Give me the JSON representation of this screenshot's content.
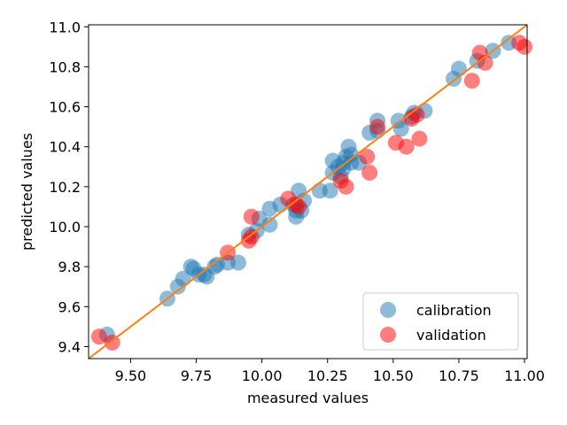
{
  "chart_data": {
    "type": "scatter",
    "title": "",
    "xlabel": "measured values",
    "ylabel": "predicted values",
    "xlim": [
      9.34,
      11.01
    ],
    "ylim": [
      9.34,
      11.01
    ],
    "xticks": [
      9.5,
      9.75,
      10.0,
      10.25,
      10.5,
      10.75,
      11.0
    ],
    "xtick_labels": [
      "9.50",
      "9.75",
      "10.00",
      "10.25",
      "10.50",
      "10.75",
      "11.00"
    ],
    "yticks": [
      9.4,
      9.6,
      9.8,
      10.0,
      10.2,
      10.4,
      10.6,
      10.8,
      11.0
    ],
    "ytick_labels": [
      "9.4",
      "9.6",
      "9.8",
      "10.0",
      "10.2",
      "10.4",
      "10.6",
      "10.8",
      "11.0"
    ],
    "grid": false,
    "legend_position": "bottom-right",
    "series": [
      {
        "name": "calibration",
        "color": "#1f77b4",
        "points": [
          [
            9.41,
            9.46
          ],
          [
            9.64,
            9.64
          ],
          [
            9.68,
            9.7
          ],
          [
            9.7,
            9.74
          ],
          [
            9.73,
            9.8
          ],
          [
            9.74,
            9.79
          ],
          [
            9.76,
            9.76
          ],
          [
            9.78,
            9.76
          ],
          [
            9.79,
            9.75
          ],
          [
            9.82,
            9.8
          ],
          [
            9.83,
            9.81
          ],
          [
            9.87,
            9.82
          ],
          [
            9.91,
            9.82
          ],
          [
            9.95,
            9.96
          ],
          [
            9.98,
            9.98
          ],
          [
            9.99,
            10.04
          ],
          [
            10.03,
            10.09
          ],
          [
            10.03,
            10.01
          ],
          [
            10.07,
            10.11
          ],
          [
            10.12,
            10.11
          ],
          [
            10.13,
            10.05
          ],
          [
            10.13,
            10.08
          ],
          [
            10.14,
            10.18
          ],
          [
            10.15,
            10.08
          ],
          [
            10.16,
            10.13
          ],
          [
            10.22,
            10.18
          ],
          [
            10.26,
            10.18
          ],
          [
            10.27,
            10.27
          ],
          [
            10.27,
            10.33
          ],
          [
            10.29,
            10.3
          ],
          [
            10.3,
            10.25
          ],
          [
            10.31,
            10.29
          ],
          [
            10.31,
            10.32
          ],
          [
            10.32,
            10.35
          ],
          [
            10.33,
            10.4
          ],
          [
            10.34,
            10.36
          ],
          [
            10.34,
            10.32
          ],
          [
            10.37,
            10.32
          ],
          [
            10.41,
            10.47
          ],
          [
            10.44,
            10.53
          ],
          [
            10.44,
            10.48
          ],
          [
            10.52,
            10.53
          ],
          [
            10.53,
            10.49
          ],
          [
            10.57,
            10.55
          ],
          [
            10.58,
            10.57
          ],
          [
            10.62,
            10.58
          ],
          [
            10.73,
            10.74
          ],
          [
            10.75,
            10.79
          ],
          [
            10.82,
            10.83
          ],
          [
            10.88,
            10.88
          ],
          [
            10.94,
            10.92
          ]
        ]
      },
      {
        "name": "validation",
        "color": "#ff0000",
        "points": [
          [
            9.38,
            9.45
          ],
          [
            9.43,
            9.42
          ],
          [
            9.87,
            9.87
          ],
          [
            9.95,
            9.93
          ],
          [
            9.96,
            9.95
          ],
          [
            9.96,
            10.05
          ],
          [
            10.1,
            10.14
          ],
          [
            10.13,
            10.11
          ],
          [
            10.14,
            10.1
          ],
          [
            10.3,
            10.23
          ],
          [
            10.32,
            10.2
          ],
          [
            10.4,
            10.35
          ],
          [
            10.41,
            10.27
          ],
          [
            10.44,
            10.5
          ],
          [
            10.51,
            10.42
          ],
          [
            10.55,
            10.4
          ],
          [
            10.57,
            10.54
          ],
          [
            10.59,
            10.56
          ],
          [
            10.6,
            10.44
          ],
          [
            10.8,
            10.73
          ],
          [
            10.83,
            10.87
          ],
          [
            10.85,
            10.82
          ],
          [
            10.98,
            10.92
          ],
          [
            11.0,
            10.9
          ]
        ]
      }
    ],
    "reference_line": {
      "type": "identity",
      "color": "#ff7f0e"
    }
  }
}
